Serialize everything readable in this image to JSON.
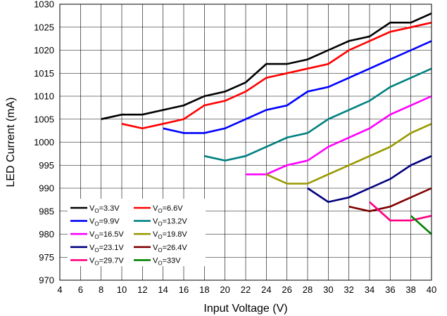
{
  "chart_data": {
    "type": "line",
    "title": "",
    "xlabel": "Input Voltage (V)",
    "ylabel": "LED Current (mA)",
    "xlim": [
      4,
      40
    ],
    "ylim": [
      970,
      1030
    ],
    "xticks": [
      "4",
      "6",
      "8",
      "10",
      "12",
      "14",
      "16",
      "18",
      "20",
      "22",
      "24",
      "26",
      "28",
      "30",
      "32",
      "34",
      "36",
      "38",
      "40"
    ],
    "yticks": [
      "970",
      "975",
      "980",
      "985",
      "990",
      "995",
      "1000",
      "1005",
      "1010",
      "1015",
      "1020",
      "1025",
      "1030"
    ],
    "grid": true,
    "legend_position": "bottom-left",
    "series": [
      {
        "name_main": "V",
        "name_sub": "O",
        "name_rest": "=3.3V",
        "color": "#000000",
        "x": [
          8,
          10,
          12,
          14,
          16,
          18,
          20,
          22,
          24,
          26,
          28,
          30,
          32,
          34,
          36,
          38,
          40
        ],
        "y": [
          1005,
          1006,
          1006,
          1007,
          1008,
          1010,
          1011,
          1013,
          1017,
          1017,
          1018,
          1020,
          1022,
          1023,
          1026,
          1026,
          1028
        ]
      },
      {
        "name_main": "V",
        "name_sub": "O",
        "name_rest": "=6.6V",
        "color": "#ff0000",
        "x": [
          10,
          12,
          14,
          16,
          18,
          20,
          22,
          24,
          26,
          28,
          30,
          32,
          34,
          36,
          38,
          40
        ],
        "y": [
          1004,
          1003,
          1004,
          1005,
          1008,
          1009,
          1011,
          1014,
          1015,
          1016,
          1017,
          1020,
          1022,
          1024,
          1025,
          1026
        ]
      },
      {
        "name_main": "V",
        "name_sub": "O",
        "name_rest": "=9.9V",
        "color": "#0000ff",
        "x": [
          14,
          16,
          18,
          20,
          22,
          24,
          26,
          28,
          30,
          32,
          34,
          36,
          38,
          40
        ],
        "y": [
          1003,
          1002,
          1002,
          1003,
          1005,
          1007,
          1008,
          1011,
          1012,
          1014,
          1016,
          1018,
          1020,
          1022
        ]
      },
      {
        "name_main": "V",
        "name_sub": "O",
        "name_rest": "=13.2V",
        "color": "#008080",
        "x": [
          18,
          20,
          22,
          24,
          26,
          28,
          30,
          32,
          34,
          36,
          38,
          40
        ],
        "y": [
          997,
          996,
          997,
          999,
          1001,
          1002,
          1005,
          1007,
          1009,
          1012,
          1014,
          1016
        ]
      },
      {
        "name_main": "V",
        "name_sub": "O",
        "name_rest": "=16.5V",
        "color": "#ff00ff",
        "x": [
          22,
          24,
          26,
          28,
          30,
          32,
          34,
          36,
          38,
          40
        ],
        "y": [
          993,
          993,
          995,
          996,
          999,
          1001,
          1003,
          1006,
          1008,
          1010
        ]
      },
      {
        "name_main": "V",
        "name_sub": "O",
        "name_rest": "=19.8V",
        "color": "#999900",
        "x": [
          24,
          26,
          28,
          30,
          32,
          34,
          36,
          38,
          40
        ],
        "y": [
          993,
          991,
          991,
          993,
          995,
          997,
          999,
          1002,
          1004
        ]
      },
      {
        "name_main": "V",
        "name_sub": "O",
        "name_rest": "=23.1V",
        "color": "#000080",
        "x": [
          28,
          30,
          32,
          34,
          36,
          38,
          40
        ],
        "y": [
          990,
          987,
          988,
          990,
          992,
          995,
          997
        ]
      },
      {
        "name_main": "V",
        "name_sub": "O",
        "name_rest": "=26.4V",
        "color": "#800000",
        "x": [
          32,
          34,
          36,
          38,
          40
        ],
        "y": [
          986,
          985,
          986,
          988,
          990
        ]
      },
      {
        "name_main": "V",
        "name_sub": "O",
        "name_rest": "=29.7V",
        "color": "#ff0080",
        "x": [
          34,
          36,
          38,
          40
        ],
        "y": [
          987,
          983,
          983,
          984
        ]
      },
      {
        "name_main": "V",
        "name_sub": "O",
        "name_rest": "=33V",
        "color": "#008000",
        "x": [
          38,
          40
        ],
        "y": [
          984,
          980
        ]
      }
    ]
  }
}
